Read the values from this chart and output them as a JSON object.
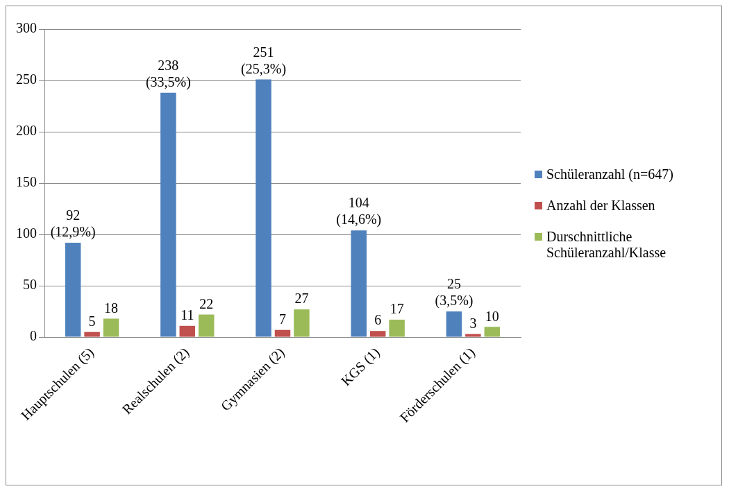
{
  "chart_data": {
    "type": "bar",
    "categories": [
      "Hauptschulen (5)",
      "Realschulen (2)",
      "Gymnasien (2)",
      "KGS (1)",
      "Förderschulen (1)"
    ],
    "series": [
      {
        "name": "Schüleranzahl (n=647)",
        "color": "#4f81bd",
        "values": [
          92,
          238,
          251,
          104,
          25
        ],
        "value_labels": [
          "92\n(12,9%)",
          "238\n(33,5%)",
          "251\n(25,3%)",
          "104\n(14,6%)",
          "25\n(3,5%)"
        ]
      },
      {
        "name": "Anzahl der Klassen",
        "color": "#c0504d",
        "values": [
          5,
          11,
          7,
          6,
          3
        ],
        "value_labels": [
          "5",
          "11",
          "7",
          "6",
          "3"
        ]
      },
      {
        "name": "Durschnittliche Schüleranzahl/Klasse",
        "color": "#9bbb59",
        "values": [
          18,
          22,
          27,
          17,
          10
        ],
        "value_labels": [
          "18",
          "22",
          "27",
          "17",
          "10"
        ]
      }
    ],
    "ylim": [
      0,
      300
    ],
    "yticks": [
      0,
      50,
      100,
      150,
      200,
      250,
      300
    ],
    "grid": "y",
    "legend": "right"
  }
}
